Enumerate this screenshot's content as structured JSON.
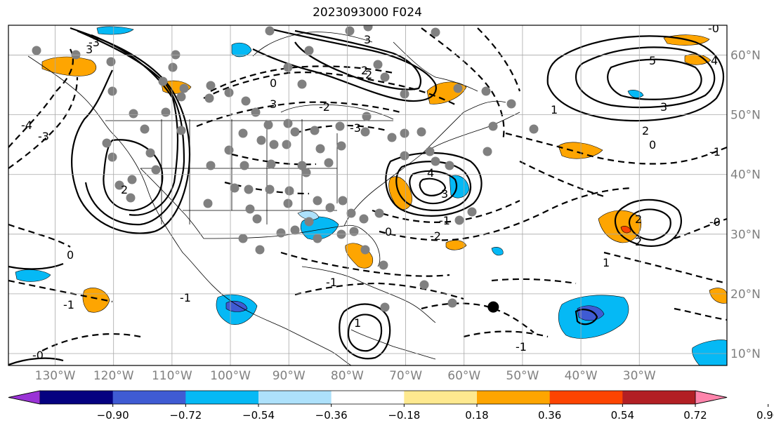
{
  "title": "2023093000 F024",
  "map": {
    "extent": {
      "lon_min": -138,
      "lon_max": -15,
      "lat_min": 8,
      "lat_max": 65
    },
    "lon_ticks": [
      "130°W",
      "120°W",
      "110°W",
      "100°W",
      "90°W",
      "80°W",
      "70°W",
      "60°W",
      "50°W",
      "40°W",
      "30°W"
    ],
    "lon_tick_values": [
      -130,
      -120,
      -110,
      -100,
      -90,
      -80,
      -70,
      -60,
      -50,
      -40,
      -30
    ],
    "lat_ticks": [
      "10°N",
      "20°N",
      "30°N",
      "40°N",
      "50°N",
      "60°N"
    ],
    "lat_tick_values": [
      10,
      20,
      30,
      40,
      50,
      60
    ],
    "gridlines": true,
    "contour_labels": [
      "3",
      "2",
      "0",
      "-3",
      "-4",
      "3",
      "-2",
      "-3",
      "3",
      "2",
      "-3",
      "0",
      "5",
      "4",
      "3",
      "2",
      "0",
      "-0",
      "-1",
      "1",
      "4",
      "3",
      "2",
      "-1",
      "2",
      "1",
      "-1",
      "-2",
      "-1",
      "0",
      "2",
      "1",
      "-1",
      "-1",
      "-0",
      "-0"
    ],
    "highlighted_marker": {
      "lon": -55,
      "lat": 17.8
    }
  },
  "colorbar": {
    "ticks": [
      "−0.90",
      "−0.72",
      "−0.54",
      "−0.36",
      "−0.18",
      "0.18",
      "0.36",
      "0.54",
      "0.72",
      "0.90"
    ],
    "colors": [
      "#9a33d6",
      "#050280",
      "#3f5bd3",
      "#05b9f5",
      "#ade1fb",
      "#ffffff",
      "#fee98f",
      "#fea501",
      "#fd4402",
      "#b21f24",
      "#fe84ab"
    ]
  }
}
